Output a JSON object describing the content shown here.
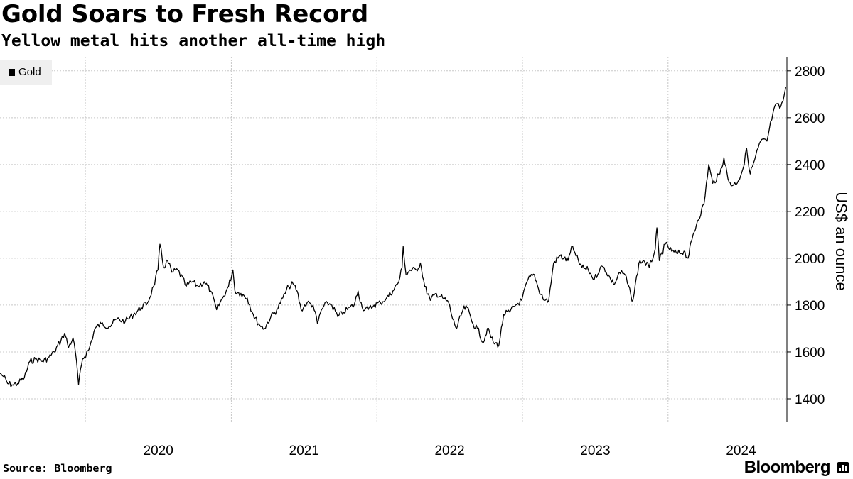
{
  "header": {
    "title": "Gold Soars to Fresh Record",
    "subtitle": "Yellow metal hits another all-time high"
  },
  "footer": {
    "source": "Source: Bloomberg",
    "brand": "Bloomberg"
  },
  "legend": {
    "label": "Gold",
    "swatch_color": "#000000"
  },
  "chart_data": {
    "type": "line",
    "title": "Gold Soars to Fresh Record",
    "subtitle": "Yellow metal hits another all-time high",
    "ylabel": "US$ an ounce",
    "xlabel": "",
    "y_axis_side": "right",
    "ylim": [
      1300,
      2860
    ],
    "xlim": [
      "2019-06-01",
      "2024-10-25"
    ],
    "yticks": [
      1400,
      1600,
      1800,
      2000,
      2200,
      2400,
      2600,
      2800
    ],
    "xticks": [
      {
        "label": "2020",
        "date": "2020-01-01"
      },
      {
        "label": "2021",
        "date": "2021-01-01"
      },
      {
        "label": "2022",
        "date": "2022-01-01"
      },
      {
        "label": "2023",
        "date": "2023-01-01"
      },
      {
        "label": "2024",
        "date": "2024-01-01"
      }
    ],
    "grid": true,
    "legend_position": "top-left",
    "series": [
      {
        "name": "Gold",
        "color": "#000000",
        "points": [
          [
            "2019-06-01",
            1510
          ],
          [
            "2019-06-10",
            1495
          ],
          [
            "2019-06-20",
            1465
          ],
          [
            "2019-07-01",
            1460
          ],
          [
            "2019-07-15",
            1465
          ],
          [
            "2019-08-01",
            1490
          ],
          [
            "2019-08-15",
            1560
          ],
          [
            "2019-09-01",
            1570
          ],
          [
            "2019-09-15",
            1560
          ],
          [
            "2019-10-01",
            1575
          ],
          [
            "2019-10-15",
            1600
          ],
          [
            "2019-11-01",
            1650
          ],
          [
            "2019-11-10",
            1680
          ],
          [
            "2019-11-20",
            1620
          ],
          [
            "2019-12-01",
            1660
          ],
          [
            "2019-12-10",
            1560
          ],
          [
            "2019-12-15",
            1460
          ],
          [
            "2019-12-25",
            1570
          ],
          [
            "2020-01-10",
            1610
          ],
          [
            "2020-01-25",
            1700
          ],
          [
            "2020-02-10",
            1720
          ],
          [
            "2020-03-01",
            1710
          ],
          [
            "2020-03-20",
            1740
          ],
          [
            "2020-04-10",
            1730
          ],
          [
            "2020-05-01",
            1760
          ],
          [
            "2020-05-20",
            1790
          ],
          [
            "2020-06-05",
            1810
          ],
          [
            "2020-06-20",
            1880
          ],
          [
            "2020-07-01",
            1950
          ],
          [
            "2020-07-06",
            2060
          ],
          [
            "2020-07-15",
            1960
          ],
          [
            "2020-07-25",
            1990
          ],
          [
            "2020-08-05",
            1940
          ],
          [
            "2020-08-20",
            1950
          ],
          [
            "2020-09-10",
            1880
          ],
          [
            "2020-09-25",
            1900
          ],
          [
            "2020-10-10",
            1880
          ],
          [
            "2020-10-25",
            1900
          ],
          [
            "2020-11-10",
            1860
          ],
          [
            "2020-11-25",
            1780
          ],
          [
            "2020-12-10",
            1830
          ],
          [
            "2020-12-25",
            1880
          ],
          [
            "2021-01-05",
            1950
          ],
          [
            "2021-01-10",
            1860
          ],
          [
            "2021-01-25",
            1850
          ],
          [
            "2021-02-10",
            1830
          ],
          [
            "2021-02-25",
            1760
          ],
          [
            "2021-03-10",
            1720
          ],
          [
            "2021-03-25",
            1700
          ],
          [
            "2021-04-10",
            1750
          ],
          [
            "2021-04-25",
            1780
          ],
          [
            "2021-05-10",
            1830
          ],
          [
            "2021-05-25",
            1880
          ],
          [
            "2021-06-05",
            1890
          ],
          [
            "2021-06-15",
            1860
          ],
          [
            "2021-06-25",
            1780
          ],
          [
            "2021-07-10",
            1810
          ],
          [
            "2021-07-25",
            1800
          ],
          [
            "2021-08-05",
            1720
          ],
          [
            "2021-08-15",
            1780
          ],
          [
            "2021-08-30",
            1810
          ],
          [
            "2021-09-10",
            1800
          ],
          [
            "2021-09-25",
            1750
          ],
          [
            "2021-10-10",
            1770
          ],
          [
            "2021-10-25",
            1790
          ],
          [
            "2021-11-05",
            1800
          ],
          [
            "2021-11-15",
            1860
          ],
          [
            "2021-11-25",
            1790
          ],
          [
            "2021-12-10",
            1780
          ],
          [
            "2021-12-25",
            1800
          ],
          [
            "2022-01-10",
            1810
          ],
          [
            "2022-01-25",
            1830
          ],
          [
            "2022-02-10",
            1860
          ],
          [
            "2022-02-25",
            1900
          ],
          [
            "2022-03-05",
            1960
          ],
          [
            "2022-03-08",
            2050
          ],
          [
            "2022-03-15",
            1930
          ],
          [
            "2022-03-25",
            1950
          ],
          [
            "2022-04-10",
            1950
          ],
          [
            "2022-04-20",
            1980
          ],
          [
            "2022-05-01",
            1880
          ],
          [
            "2022-05-15",
            1820
          ],
          [
            "2022-05-30",
            1850
          ],
          [
            "2022-06-15",
            1830
          ],
          [
            "2022-06-30",
            1810
          ],
          [
            "2022-07-10",
            1740
          ],
          [
            "2022-07-20",
            1700
          ],
          [
            "2022-08-05",
            1780
          ],
          [
            "2022-08-15",
            1790
          ],
          [
            "2022-08-30",
            1720
          ],
          [
            "2022-09-10",
            1700
          ],
          [
            "2022-09-25",
            1640
          ],
          [
            "2022-10-05",
            1700
          ],
          [
            "2022-10-20",
            1640
          ],
          [
            "2022-11-03",
            1630
          ],
          [
            "2022-11-15",
            1760
          ],
          [
            "2022-11-30",
            1770
          ],
          [
            "2022-12-15",
            1800
          ],
          [
            "2022-12-30",
            1820
          ],
          [
            "2023-01-15",
            1910
          ],
          [
            "2023-01-31",
            1930
          ],
          [
            "2023-02-10",
            1870
          ],
          [
            "2023-02-25",
            1820
          ],
          [
            "2023-03-08",
            1820
          ],
          [
            "2023-03-20",
            1980
          ],
          [
            "2023-04-05",
            2010
          ],
          [
            "2023-04-15",
            2000
          ],
          [
            "2023-04-25",
            1990
          ],
          [
            "2023-05-04",
            2050
          ],
          [
            "2023-05-15",
            2010
          ],
          [
            "2023-05-30",
            1960
          ],
          [
            "2023-06-15",
            1950
          ],
          [
            "2023-06-30",
            1910
          ],
          [
            "2023-07-15",
            1960
          ],
          [
            "2023-07-25",
            1960
          ],
          [
            "2023-08-10",
            1910
          ],
          [
            "2023-08-20",
            1890
          ],
          [
            "2023-09-01",
            1940
          ],
          [
            "2023-09-15",
            1930
          ],
          [
            "2023-09-30",
            1840
          ],
          [
            "2023-10-05",
            1820
          ],
          [
            "2023-10-20",
            1980
          ],
          [
            "2023-10-31",
            1990
          ],
          [
            "2023-11-15",
            1960
          ],
          [
            "2023-11-30",
            2040
          ],
          [
            "2023-12-04",
            2130
          ],
          [
            "2023-12-10",
            1990
          ],
          [
            "2023-12-25",
            2060
          ],
          [
            "2024-01-10",
            2030
          ],
          [
            "2024-01-25",
            2020
          ],
          [
            "2024-02-10",
            2030
          ],
          [
            "2024-02-20",
            2000
          ],
          [
            "2024-03-01",
            2080
          ],
          [
            "2024-03-15",
            2160
          ],
          [
            "2024-03-31",
            2230
          ],
          [
            "2024-04-12",
            2400
          ],
          [
            "2024-04-22",
            2320
          ],
          [
            "2024-05-10",
            2360
          ],
          [
            "2024-05-20",
            2430
          ],
          [
            "2024-05-30",
            2340
          ],
          [
            "2024-06-10",
            2310
          ],
          [
            "2024-06-25",
            2330
          ],
          [
            "2024-07-10",
            2400
          ],
          [
            "2024-07-16",
            2470
          ],
          [
            "2024-07-25",
            2360
          ],
          [
            "2024-08-05",
            2420
          ],
          [
            "2024-08-20",
            2500
          ],
          [
            "2024-09-05",
            2500
          ],
          [
            "2024-09-20",
            2620
          ],
          [
            "2024-09-30",
            2660
          ],
          [
            "2024-10-07",
            2640
          ],
          [
            "2024-10-15",
            2670
          ],
          [
            "2024-10-22",
            2730
          ]
        ]
      }
    ]
  }
}
